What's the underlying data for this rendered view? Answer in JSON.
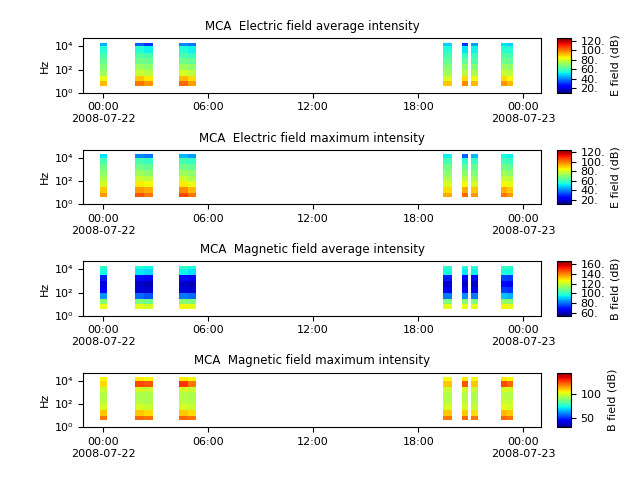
{
  "chart_data": [
    {
      "type": "heatmap",
      "title": "MCA  Electric field average intensity",
      "y_label": "Hz",
      "colorbar_label": "E field (dB)",
      "log": "y",
      "xlim": [
        "2008-07-21T22:52",
        "2008-07-23T01:00"
      ],
      "xticks": [
        {
          "value": "2008-07-22T00:00",
          "label": "00:00\n2008-07-22"
        },
        {
          "value": "2008-07-22T06:00",
          "label": "06:00"
        },
        {
          "value": "2008-07-22T12:00",
          "label": "12:00"
        },
        {
          "value": "2008-07-22T18:00",
          "label": "18:00"
        },
        {
          "value": "2008-07-23T00:00",
          "label": "00:00\n2008-07-23"
        }
      ],
      "ylim": [
        1,
        50000
      ],
      "yticks": [
        {
          "value": 1,
          "label": "10⁰"
        },
        {
          "value": 100,
          "label": "10²"
        },
        {
          "value": 10000,
          "label": "10⁴"
        }
      ],
      "y_bins": [
        4,
        10,
        30,
        100,
        300,
        1000,
        3000,
        10000,
        20000
      ],
      "colorbar_range": [
        10,
        125
      ],
      "colorbar_ticks": [
        {
          "value": 20,
          "label": "20."
        },
        {
          "value": 40,
          "label": "40."
        },
        {
          "value": 60,
          "label": "60."
        },
        {
          "value": 80,
          "label": "80."
        },
        {
          "value": 100,
          "label": "100."
        },
        {
          "value": 120,
          "label": "120."
        }
      ],
      "segments": [
        {
          "x": [
            "2008-07-21T23:50",
            "2008-07-22T00:15"
          ],
          "cells": [
            [
              92,
              82,
              72,
              68,
              64,
              60,
              55,
              45
            ]
          ]
        },
        {
          "x": [
            "2008-07-22T01:50",
            "2008-07-22T02:20",
            "2008-07-22T02:50"
          ],
          "cells": [
            [
              100,
              90,
              78,
              72,
              66,
              62,
              55,
              35
            ],
            [
              96,
              86,
              76,
              70,
              65,
              60,
              52,
              30
            ]
          ]
        },
        {
          "x": [
            "2008-07-22T04:20",
            "2008-07-22T04:50",
            "2008-07-22T05:20"
          ],
          "cells": [
            [
              102,
              92,
              80,
              72,
              66,
              60,
              55,
              40
            ],
            [
              95,
              88,
              76,
              70,
              64,
              58,
              52,
              38
            ]
          ]
        },
        {
          "x": [
            "2008-07-22T19:25",
            "2008-07-22T19:55"
          ],
          "cells": [
            [
              90,
              80,
              72,
              68,
              64,
              60,
              55,
              48
            ]
          ]
        },
        {
          "x": [
            "2008-07-22T20:30",
            "2008-07-22T20:50"
          ],
          "cells": [
            [
              98,
              88,
              76,
              70,
              64,
              58,
              50,
              30
            ]
          ]
        },
        {
          "x": [
            "2008-07-22T21:00",
            "2008-07-22T21:25"
          ],
          "cells": [
            [
              92,
              84,
              74,
              68,
              62,
              58,
              52,
              42
            ]
          ]
        },
        {
          "x": [
            "2008-07-22T22:45",
            "2008-07-22T23:05",
            "2008-07-22T23:25"
          ],
          "cells": [
            [
              96,
              88,
              78,
              72,
              66,
              62,
              56,
              50
            ],
            [
              92,
              84,
              76,
              70,
              64,
              60,
              55,
              48
            ]
          ]
        }
      ]
    },
    {
      "type": "heatmap",
      "title": "MCA  Electric field maximum intensity",
      "y_label": "Hz",
      "colorbar_label": "E field (dB)",
      "log": "y",
      "xlim": [
        "2008-07-21T22:52",
        "2008-07-23T01:00"
      ],
      "xticks": [
        {
          "value": "2008-07-22T00:00",
          "label": "00:00\n2008-07-22"
        },
        {
          "value": "2008-07-22T06:00",
          "label": "06:00"
        },
        {
          "value": "2008-07-22T12:00",
          "label": "12:00"
        },
        {
          "value": "2008-07-22T18:00",
          "label": "18:00"
        },
        {
          "value": "2008-07-23T00:00",
          "label": "00:00\n2008-07-23"
        }
      ],
      "ylim": [
        1,
        50000
      ],
      "yticks": [
        {
          "value": 1,
          "label": "10⁰"
        },
        {
          "value": 100,
          "label": "10²"
        },
        {
          "value": 10000,
          "label": "10⁴"
        }
      ],
      "y_bins": [
        4,
        10,
        30,
        100,
        300,
        1000,
        3000,
        10000,
        20000
      ],
      "colorbar_range": [
        10,
        125
      ],
      "colorbar_ticks": [
        {
          "value": 20,
          "label": "20."
        },
        {
          "value": 40,
          "label": "40."
        },
        {
          "value": 60,
          "label": "60."
        },
        {
          "value": 80,
          "label": "80."
        },
        {
          "value": 100,
          "label": "100."
        },
        {
          "value": 120,
          "label": "120."
        }
      ],
      "segments": [
        {
          "x": [
            "2008-07-21T23:50",
            "2008-07-22T00:15"
          ],
          "cells": [
            [
              96,
              90,
              80,
              74,
              70,
              66,
              60,
              50
            ]
          ]
        },
        {
          "x": [
            "2008-07-22T01:50",
            "2008-07-22T02:20",
            "2008-07-22T02:50"
          ],
          "cells": [
            [
              104,
              96,
              86,
              78,
              72,
              66,
              60,
              40
            ],
            [
              100,
              94,
              84,
              76,
              70,
              64,
              58,
              38
            ]
          ]
        },
        {
          "x": [
            "2008-07-22T04:20",
            "2008-07-22T04:50",
            "2008-07-22T05:20"
          ],
          "cells": [
            [
              106,
              98,
              86,
              78,
              72,
              66,
              60,
              45
            ],
            [
              100,
              92,
              82,
              74,
              70,
              64,
              58,
              42
            ]
          ]
        },
        {
          "x": [
            "2008-07-22T19:25",
            "2008-07-22T19:55"
          ],
          "cells": [
            [
              94,
              88,
              80,
              74,
              70,
              66,
              60,
              52
            ]
          ]
        },
        {
          "x": [
            "2008-07-22T20:30",
            "2008-07-22T20:50"
          ],
          "cells": [
            [
              102,
              94,
              84,
              76,
              70,
              64,
              56,
              35
            ]
          ]
        },
        {
          "x": [
            "2008-07-22T21:00",
            "2008-07-22T21:25"
          ],
          "cells": [
            [
              96,
              90,
              80,
              74,
              68,
              64,
              58,
              45
            ]
          ]
        },
        {
          "x": [
            "2008-07-22T22:45",
            "2008-07-22T23:05",
            "2008-07-22T23:25"
          ],
          "cells": [
            [
              100,
              94,
              84,
              78,
              72,
              66,
              60,
              54
            ],
            [
              96,
              90,
              82,
              76,
              70,
              64,
              58,
              52
            ]
          ]
        }
      ]
    },
    {
      "type": "heatmap",
      "title": "MCA  Magnetic field average intensity",
      "y_label": "Hz",
      "colorbar_label": "B field (dB)",
      "log": "y",
      "xlim": [
        "2008-07-21T22:52",
        "2008-07-23T01:00"
      ],
      "xticks": [
        {
          "value": "2008-07-22T00:00",
          "label": "00:00\n2008-07-22"
        },
        {
          "value": "2008-07-22T06:00",
          "label": "06:00"
        },
        {
          "value": "2008-07-22T12:00",
          "label": "12:00"
        },
        {
          "value": "2008-07-22T18:00",
          "label": "18:00"
        },
        {
          "value": "2008-07-23T00:00",
          "label": "00:00\n2008-07-23"
        }
      ],
      "ylim": [
        1,
        50000
      ],
      "yticks": [
        {
          "value": 1,
          "label": "10⁰"
        },
        {
          "value": 100,
          "label": "10²"
        },
        {
          "value": 10000,
          "label": "10⁴"
        }
      ],
      "y_bins": [
        4,
        10,
        30,
        100,
        300,
        1000,
        3000,
        10000,
        20000
      ],
      "colorbar_range": [
        55,
        165
      ],
      "colorbar_ticks": [
        {
          "value": 60,
          "label": "60."
        },
        {
          "value": 80,
          "label": "80."
        },
        {
          "value": 100,
          "label": "100."
        },
        {
          "value": 120,
          "label": "120."
        },
        {
          "value": 140,
          "label": "140."
        },
        {
          "value": 160,
          "label": "160."
        }
      ],
      "segments": [
        {
          "x": [
            "2008-07-21T23:50",
            "2008-07-22T00:15"
          ],
          "cells": [
            [
              125,
              112,
              85,
              68,
              64,
              72,
              96,
              100
            ]
          ]
        },
        {
          "x": [
            "2008-07-22T01:50",
            "2008-07-22T02:20",
            "2008-07-22T02:50"
          ],
          "cells": [
            [
              124,
              110,
              80,
              64,
              62,
              70,
              94,
              98
            ],
            [
              122,
              108,
              78,
              63,
              61,
              68,
              92,
              96
            ]
          ]
        },
        {
          "x": [
            "2008-07-22T04:20",
            "2008-07-22T04:50",
            "2008-07-22T05:20"
          ],
          "cells": [
            [
              126,
              112,
              82,
              64,
              62,
              70,
              95,
              100
            ],
            [
              124,
              110,
              80,
              63,
              61,
              68,
              93,
              98
            ]
          ]
        },
        {
          "x": [
            "2008-07-22T19:25",
            "2008-07-22T19:55"
          ],
          "cells": [
            [
              124,
              110,
              82,
              66,
              63,
              72,
              96,
              100
            ]
          ]
        },
        {
          "x": [
            "2008-07-22T20:30",
            "2008-07-22T20:50"
          ],
          "cells": [
            [
              125,
              112,
              84,
              66,
              62,
              70,
              94,
              98
            ]
          ]
        },
        {
          "x": [
            "2008-07-22T21:00",
            "2008-07-22T21:25"
          ],
          "cells": [
            [
              124,
              110,
              82,
              65,
              62,
              70,
              95,
              99
            ]
          ]
        },
        {
          "x": [
            "2008-07-22T22:45",
            "2008-07-22T23:05",
            "2008-07-22T23:25"
          ],
          "cells": [
            [
              126,
              114,
              90,
              75,
              70,
              76,
              97,
              101
            ],
            [
              124,
              112,
              88,
              74,
              69,
              75,
              96,
              100
            ]
          ]
        }
      ]
    },
    {
      "type": "heatmap",
      "title": "MCA  Magnetic field maximum intensity",
      "y_label": "Hz",
      "colorbar_label": "B field (dB)",
      "log": "y",
      "xlim": [
        "2008-07-21T22:52",
        "2008-07-23T01:00"
      ],
      "xticks": [
        {
          "value": "2008-07-22T00:00",
          "label": "00:00\n2008-07-22"
        },
        {
          "value": "2008-07-22T06:00",
          "label": "06:00"
        },
        {
          "value": "2008-07-22T12:00",
          "label": "12:00"
        },
        {
          "value": "2008-07-22T18:00",
          "label": "18:00"
        },
        {
          "value": "2008-07-23T00:00",
          "label": "00:00\n2008-07-23"
        }
      ],
      "ylim": [
        1,
        50000
      ],
      "yticks": [
        {
          "value": 1,
          "label": "10⁰"
        },
        {
          "value": 100,
          "label": "10²"
        },
        {
          "value": 10000,
          "label": "10⁴"
        }
      ],
      "y_bins": [
        4,
        10,
        30,
        100,
        300,
        1000,
        3000,
        10000,
        20000
      ],
      "colorbar_range": [
        30,
        145
      ],
      "colorbar_ticks": [
        50,
        100
      ],
      "segments": [
        {
          "x": [
            "2008-07-21T23:50",
            "2008-07-22T00:15"
          ],
          "cells": [
            [
              120,
              110,
              100,
              96,
              95,
              98,
              108,
              104
            ]
          ]
        },
        {
          "x": [
            "2008-07-22T01:50",
            "2008-07-22T02:20",
            "2008-07-22T02:50"
          ],
          "cells": [
            [
              122,
              110,
              100,
              95,
              94,
              100,
              126,
              106
            ],
            [
              120,
              108,
              98,
              94,
              94,
              98,
              124,
              104
            ]
          ]
        },
        {
          "x": [
            "2008-07-22T04:20",
            "2008-07-22T04:50",
            "2008-07-22T05:20"
          ],
          "cells": [
            [
              122,
              110,
              100,
              96,
              95,
              100,
              128,
              106
            ],
            [
              120,
              108,
              98,
              95,
              94,
              98,
              120,
              104
            ]
          ]
        },
        {
          "x": [
            "2008-07-22T19:25",
            "2008-07-22T19:55"
          ],
          "cells": [
            [
              120,
              110,
              100,
              96,
              95,
              98,
              110,
              104
            ]
          ]
        },
        {
          "x": [
            "2008-07-22T20:30",
            "2008-07-22T20:50"
          ],
          "cells": [
            [
              122,
              110,
              100,
              96,
              95,
              100,
              124,
              106
            ]
          ]
        },
        {
          "x": [
            "2008-07-22T21:00",
            "2008-07-22T21:25"
          ],
          "cells": [
            [
              120,
              108,
              98,
              95,
              94,
              98,
              110,
              104
            ]
          ]
        },
        {
          "x": [
            "2008-07-22T22:45",
            "2008-07-22T23:05",
            "2008-07-22T23:25"
          ],
          "cells": [
            [
              122,
              112,
              102,
              98,
              96,
              100,
              126,
              106
            ],
            [
              120,
              110,
              100,
              97,
              95,
              99,
              122,
              104
            ]
          ]
        }
      ]
    }
  ]
}
